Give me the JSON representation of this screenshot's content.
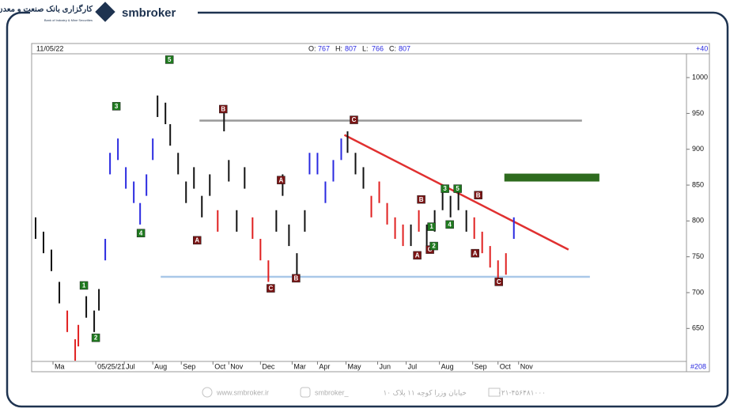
{
  "brand": {
    "name": "smbroker",
    "logo_fa": "کارگزاری بانک صنعت و معدن",
    "logo_en": "Bank of Industry & Mine Securities"
  },
  "footer": {
    "website": "www.smbroker.ir",
    "instagram": "smbroker_",
    "address": "خیابان وزرا کوچه ۱۱ پلاک ۱۰",
    "phone": "۰۲۱-۴۵۶۴۸۱۰۰۰"
  },
  "chart_data": {
    "type": "hilo",
    "date": "11/05/22",
    "ohlc": [
      {
        "label": "O:",
        "value": 767
      },
      {
        "label": "H:",
        "value": 807
      },
      {
        "label": "L:",
        "value": 766
      },
      {
        "label": "C:",
        "value": 807
      }
    ],
    "change": "+40",
    "bar_count": "#208",
    "xlim": [
      0,
      411
    ],
    "ylim": [
      604,
      1031
    ],
    "yticks": [
      650,
      700,
      750,
      800,
      850,
      900,
      950,
      1000
    ],
    "xticks": [
      {
        "value": 11,
        "label": "Ma"
      },
      {
        "value": 38,
        "label": "05/25/21"
      },
      {
        "value": 56,
        "label": "Jul"
      },
      {
        "value": 74,
        "label": "Aug"
      },
      {
        "value": 92,
        "label": "Sep"
      },
      {
        "value": 112,
        "label": "Oct"
      },
      {
        "value": 122,
        "label": "Nov"
      },
      {
        "value": 142,
        "label": "Dec"
      },
      {
        "value": 162,
        "label": "Mar"
      },
      {
        "value": 178,
        "label": "Apr"
      },
      {
        "value": 196,
        "label": "May"
      },
      {
        "value": 216,
        "label": "Jun"
      },
      {
        "value": 234,
        "label": "Jul"
      },
      {
        "value": 255,
        "label": "Aug"
      },
      {
        "value": 276,
        "label": "Sep"
      },
      {
        "value": 292,
        "label": "Oct"
      },
      {
        "value": 305,
        "label": "Nov"
      }
    ],
    "series": [
      {
        "color": "#111111",
        "x": [
          0,
          5,
          10,
          15,
          32,
          37,
          40,
          77,
          82,
          85,
          90,
          95,
          100,
          105,
          110,
          119,
          122,
          127,
          132,
          152,
          156,
          160,
          165,
          170,
          197,
          202,
          207,
          237,
          247,
          252,
          257,
          262,
          267,
          272
        ],
        "high": [
          805,
          785,
          760,
          715,
          695,
          675,
          705,
          975,
          965,
          935,
          895,
          855,
          875,
          835,
          865,
          955,
          885,
          815,
          875,
          815,
          865,
          795,
          755,
          815,
          925,
          895,
          875,
          795,
          795,
          815,
          845,
          835,
          845,
          815
        ],
        "low": [
          775,
          755,
          730,
          685,
          665,
          645,
          675,
          945,
          935,
          905,
          865,
          825,
          845,
          805,
          835,
          925,
          855,
          785,
          845,
          785,
          835,
          765,
          725,
          785,
          895,
          865,
          845,
          765,
          765,
          785,
          815,
          805,
          815,
          785
        ]
      },
      {
        "color": "#2a2ae0",
        "x": [
          44,
          47,
          52,
          57,
          62,
          66,
          70,
          74,
          173,
          178,
          183,
          188,
          193,
          302
        ],
        "high": [
          775,
          895,
          915,
          875,
          855,
          825,
          865,
          915,
          895,
          895,
          855,
          885,
          915,
          805
        ],
        "low": [
          745,
          865,
          885,
          845,
          825,
          795,
          835,
          885,
          865,
          865,
          825,
          855,
          885,
          775
        ]
      },
      {
        "color": "#e02020",
        "x": [
          20,
          25,
          27,
          115,
          137,
          142,
          147,
          212,
          217,
          222,
          227,
          232,
          242,
          277,
          282,
          287,
          292,
          297
        ],
        "high": [
          675,
          635,
          655,
          815,
          805,
          775,
          745,
          835,
          855,
          825,
          805,
          795,
          815,
          805,
          785,
          765,
          745,
          755
        ],
        "low": [
          645,
          605,
          625,
          785,
          775,
          745,
          715,
          805,
          825,
          795,
          775,
          765,
          785,
          775,
          755,
          735,
          715,
          725
        ]
      }
    ],
    "lines": [
      {
        "x": [
          103.5,
          345
        ],
        "y": [
          940,
          940
        ],
        "color": "#999999"
      },
      {
        "x": [
          79,
          350
        ],
        "y": [
          722,
          722
        ],
        "color": "#a9c8e8"
      },
      {
        "x": [
          195,
          336.5
        ],
        "y": [
          920,
          760
        ],
        "color": "#e03030"
      }
    ],
    "zones": [
      {
        "x": [
          296,
          356
        ],
        "y": [
          855,
          866
        ],
        "color": "#2e6b1e"
      }
    ],
    "waves": [
      {
        "x": 84.5,
        "y": 1025,
        "text": "5",
        "kind": "green"
      },
      {
        "x": 51,
        "y": 960,
        "text": "3",
        "kind": "green"
      },
      {
        "x": 66.5,
        "y": 783,
        "text": "4",
        "kind": "green"
      },
      {
        "x": 30.5,
        "y": 710,
        "text": "1",
        "kind": "green"
      },
      {
        "x": 38,
        "y": 637,
        "text": "2",
        "kind": "green"
      },
      {
        "x": 118.5,
        "y": 956,
        "text": "B",
        "kind": "red"
      },
      {
        "x": 102,
        "y": 773,
        "text": "A",
        "kind": "red"
      },
      {
        "x": 148.5,
        "y": 706,
        "text": "C",
        "kind": "red"
      },
      {
        "x": 164.5,
        "y": 720,
        "text": "B",
        "kind": "red"
      },
      {
        "x": 155,
        "y": 857,
        "text": "A",
        "kind": "red"
      },
      {
        "x": 201,
        "y": 941,
        "text": "C",
        "kind": "red"
      },
      {
        "x": 258.5,
        "y": 845,
        "text": "3",
        "kind": "green"
      },
      {
        "x": 266.5,
        "y": 845,
        "text": "5",
        "kind": "green"
      },
      {
        "x": 243.5,
        "y": 830,
        "text": "B",
        "kind": "red"
      },
      {
        "x": 241,
        "y": 752,
        "text": "A",
        "kind": "red"
      },
      {
        "x": 249,
        "y": 760,
        "text": "C",
        "kind": "red"
      },
      {
        "x": 250,
        "y": 792,
        "text": "1",
        "kind": "green"
      },
      {
        "x": 251.5,
        "y": 765,
        "text": "2",
        "kind": "green"
      },
      {
        "x": 261.5,
        "y": 795,
        "text": "4",
        "kind": "green"
      },
      {
        "x": 279.5,
        "y": 836,
        "text": "B",
        "kind": "red"
      },
      {
        "x": 277.5,
        "y": 755,
        "text": "A",
        "kind": "red"
      },
      {
        "x": 292.5,
        "y": 715,
        "text": "C",
        "kind": "red"
      }
    ]
  }
}
